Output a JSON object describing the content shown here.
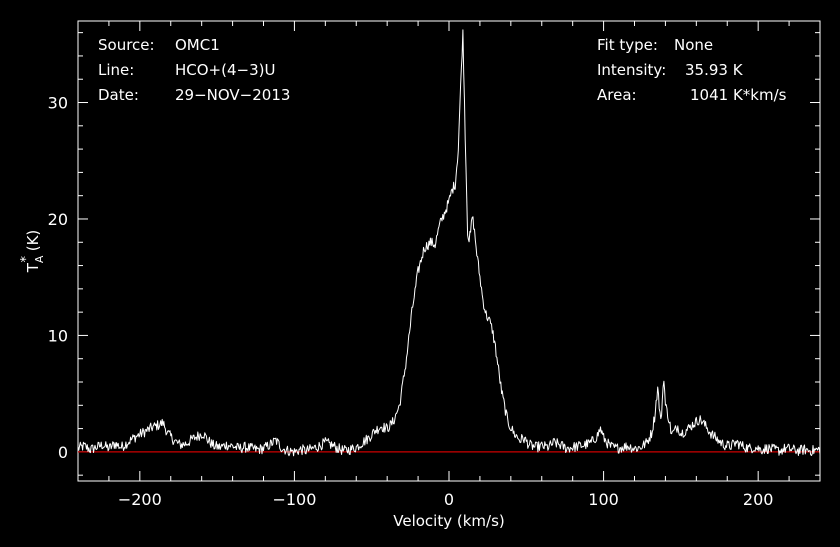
{
  "header_left": {
    "source_label": "Source:",
    "source_value": "OMC1",
    "line_label": "Line:",
    "line_value": "HCO+(4−3)U",
    "date_label": "Date:",
    "date_value": "29−NOV−2013"
  },
  "header_right": {
    "fit_label": "Fit type:",
    "fit_value": "None",
    "intensity_label": "Intensity:",
    "intensity_value": "35.93 K",
    "area_label": "Area:",
    "area_value": "1041 K*km/s"
  },
  "chart_data": {
    "type": "line",
    "xlabel": "Velocity (km/s)",
    "ylabel": "T",
    "ylabel_sub": "A",
    "ylabel_sup": "*",
    "ylabel_unit": " (K)",
    "xlim": [
      -240,
      240
    ],
    "ylim": [
      -2.5,
      37
    ],
    "x_ticks": [
      -200,
      -100,
      0,
      100,
      200
    ],
    "x_tick_labels": [
      "−200",
      "−100",
      "0",
      "100",
      "200"
    ],
    "y_ticks": [
      0,
      10,
      20,
      30
    ],
    "y_tick_labels": [
      "0",
      "10",
      "20",
      "30"
    ],
    "baseline": 0,
    "colors": {
      "spectrum": "#ffffff",
      "baseline": "#cc0000",
      "axes": "#ffffff",
      "background": "#000000"
    },
    "series": [
      {
        "x": [
          -240,
          -236,
          -232,
          -228,
          -224,
          -220,
          -216,
          -212,
          -208,
          -204,
          -200,
          -196,
          -192,
          -188,
          -185,
          -182,
          -178,
          -174,
          -170,
          -166,
          -162,
          -159,
          -156,
          -152,
          -148,
          -144,
          -140,
          -136,
          -132,
          -128,
          -124,
          -120,
          -116,
          -112,
          -108,
          -104,
          -100,
          -96,
          -92,
          -88,
          -84,
          -80,
          -76,
          -72,
          -68,
          -64,
          -60,
          -56,
          -52,
          -48,
          -44,
          -40,
          -36,
          -32,
          -28,
          -24,
          -20,
          -16,
          -12,
          -9,
          -6,
          -3,
          0,
          2,
          4,
          6,
          8,
          9,
          10,
          11,
          12,
          13,
          14,
          15,
          16,
          18,
          20,
          22,
          24,
          26,
          28,
          30,
          34,
          38,
          42,
          46,
          48,
          52,
          56,
          60,
          64,
          68,
          72,
          76,
          80,
          84,
          88,
          92,
          96,
          98,
          100,
          104,
          108,
          112,
          116,
          120,
          124,
          128,
          131,
          133,
          135,
          137,
          139,
          140,
          142,
          144,
          146,
          148,
          150,
          154,
          158,
          162,
          164,
          166,
          170,
          174,
          178,
          182,
          186,
          190,
          194,
          198,
          202,
          206,
          210,
          214,
          218,
          222,
          226,
          230,
          234,
          240
        ],
        "y": [
          0.3,
          0.5,
          0.2,
          0.4,
          0.6,
          0.3,
          0.7,
          0.4,
          0.8,
          1.2,
          1.5,
          1.8,
          2.1,
          2.3,
          2.5,
          1.6,
          1.0,
          0.6,
          0.7,
          1.1,
          1.4,
          1.6,
          1.0,
          0.5,
          0.4,
          0.6,
          0.5,
          0.3,
          0.4,
          0.3,
          0.2,
          0.3,
          0.6,
          1.0,
          0.3,
          0.1,
          0.0,
          0.2,
          0.1,
          0.3,
          0.5,
          0.8,
          0.6,
          0.3,
          0.1,
          0.2,
          0.4,
          0.8,
          1.2,
          1.8,
          2.2,
          2.0,
          2.6,
          4.0,
          7.5,
          12.0,
          15.5,
          17.5,
          18.0,
          17.8,
          19.5,
          20.5,
          21.5,
          22.5,
          23.0,
          26.0,
          33.0,
          35.93,
          30.0,
          24.5,
          19.0,
          18.2,
          18.8,
          20.2,
          19.5,
          17.0,
          15.0,
          13.0,
          11.8,
          11.3,
          10.5,
          9.0,
          5.2,
          2.6,
          1.6,
          1.0,
          1.2,
          0.6,
          0.4,
          0.5,
          0.4,
          0.8,
          0.6,
          0.3,
          0.4,
          0.5,
          0.6,
          0.8,
          1.4,
          2.0,
          1.2,
          0.5,
          0.3,
          0.4,
          0.5,
          0.3,
          0.4,
          0.8,
          1.6,
          3.0,
          5.5,
          2.5,
          6.5,
          4.0,
          3.0,
          1.5,
          1.8,
          2.2,
          1.6,
          1.9,
          2.4,
          2.8,
          2.6,
          2.2,
          1.5,
          1.0,
          0.6,
          0.5,
          0.8,
          0.5,
          0.3,
          0.4,
          0.2,
          0.3,
          0.2,
          0.1,
          0.3,
          0.2,
          0.1,
          0.2,
          0.1,
          0.2
        ]
      }
    ]
  }
}
